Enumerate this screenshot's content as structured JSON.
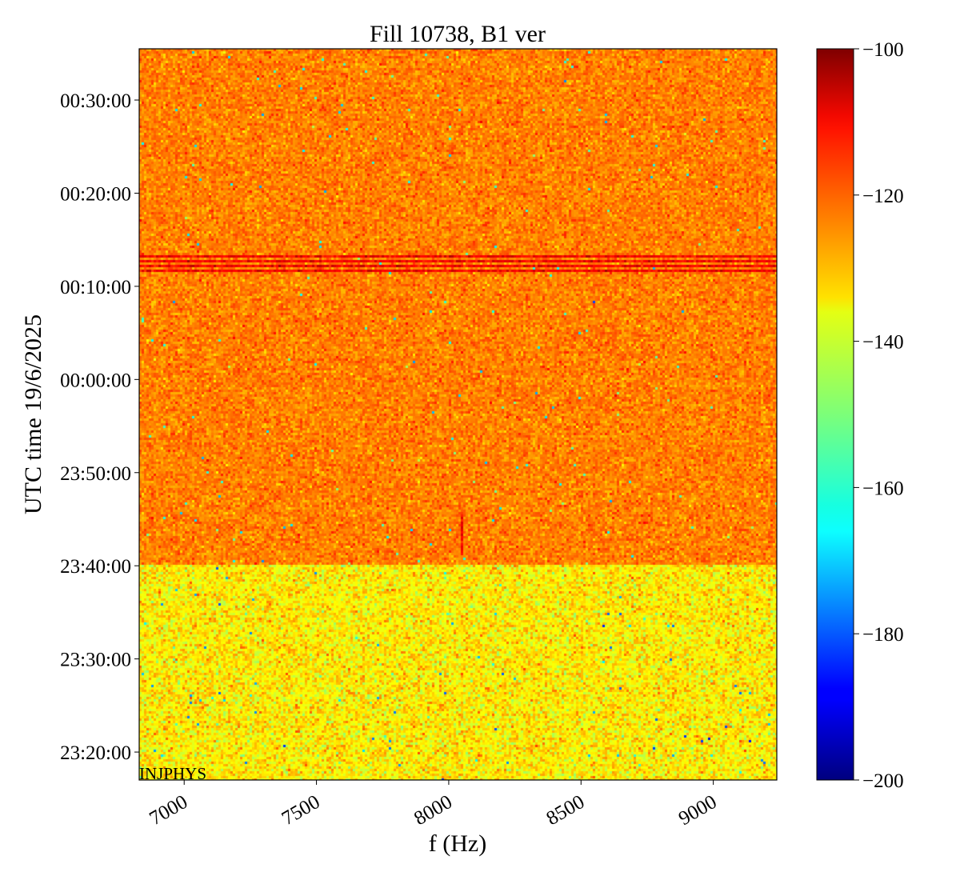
{
  "chart_data": {
    "type": "heatmap",
    "title": "Fill 10738, B1 ver",
    "xlabel": "f (Hz)",
    "ylabel": "UTC time 19/6/2025",
    "xlim": [
      6830,
      9240
    ],
    "x_ticks": [
      7000,
      7500,
      8000,
      8500,
      9000
    ],
    "x_tick_labels": [
      "7000",
      "7500",
      "8000",
      "8500",
      "9000"
    ],
    "ylim": [
      "2025-06-18T23:17:00",
      "2025-06-19T00:35:30"
    ],
    "y_ticks": [
      "2025-06-18T23:20:00",
      "2025-06-18T23:30:00",
      "2025-06-18T23:40:00",
      "2025-06-18T23:50:00",
      "2025-06-19T00:00:00",
      "2025-06-19T00:10:00",
      "2025-06-19T00:20:00",
      "2025-06-19T00:30:00"
    ],
    "y_tick_labels": [
      "23:20:00",
      "23:30:00",
      "23:40:00",
      "23:50:00",
      "00:00:00",
      "00:10:00",
      "00:20:00",
      "00:30:00"
    ],
    "colormap": "jet",
    "colorbar": {
      "range": [
        -200,
        -100
      ],
      "ticks": [
        -100,
        -120,
        -140,
        -160,
        -180,
        -200
      ],
      "tick_labels": [
        "−100",
        "−120",
        "−140",
        "−160",
        "−180",
        "−200"
      ]
    },
    "regions": [
      {
        "time_start": "2025-06-18T23:17:00",
        "time_end": "2025-06-18T23:40:00",
        "mean_level": -136,
        "spread": 5
      },
      {
        "time_start": "2025-06-18T23:40:00",
        "time_end": "2025-06-19T00:35:30",
        "mean_level": -125,
        "spread": 3.5
      }
    ],
    "features": [
      {
        "type": "horizontal-lines",
        "time_start": "2025-06-19T00:11:15",
        "time_end": "2025-06-19T00:13:15",
        "level": -112,
        "f_range": [
          6830,
          9240
        ]
      },
      {
        "type": "vertical-line",
        "frequency": 8050,
        "time_start": "2025-06-18T23:41:15",
        "time_end": "2025-06-18T23:45:30",
        "level": -114
      }
    ],
    "annotation": "INJPHYS",
    "grid": false
  }
}
